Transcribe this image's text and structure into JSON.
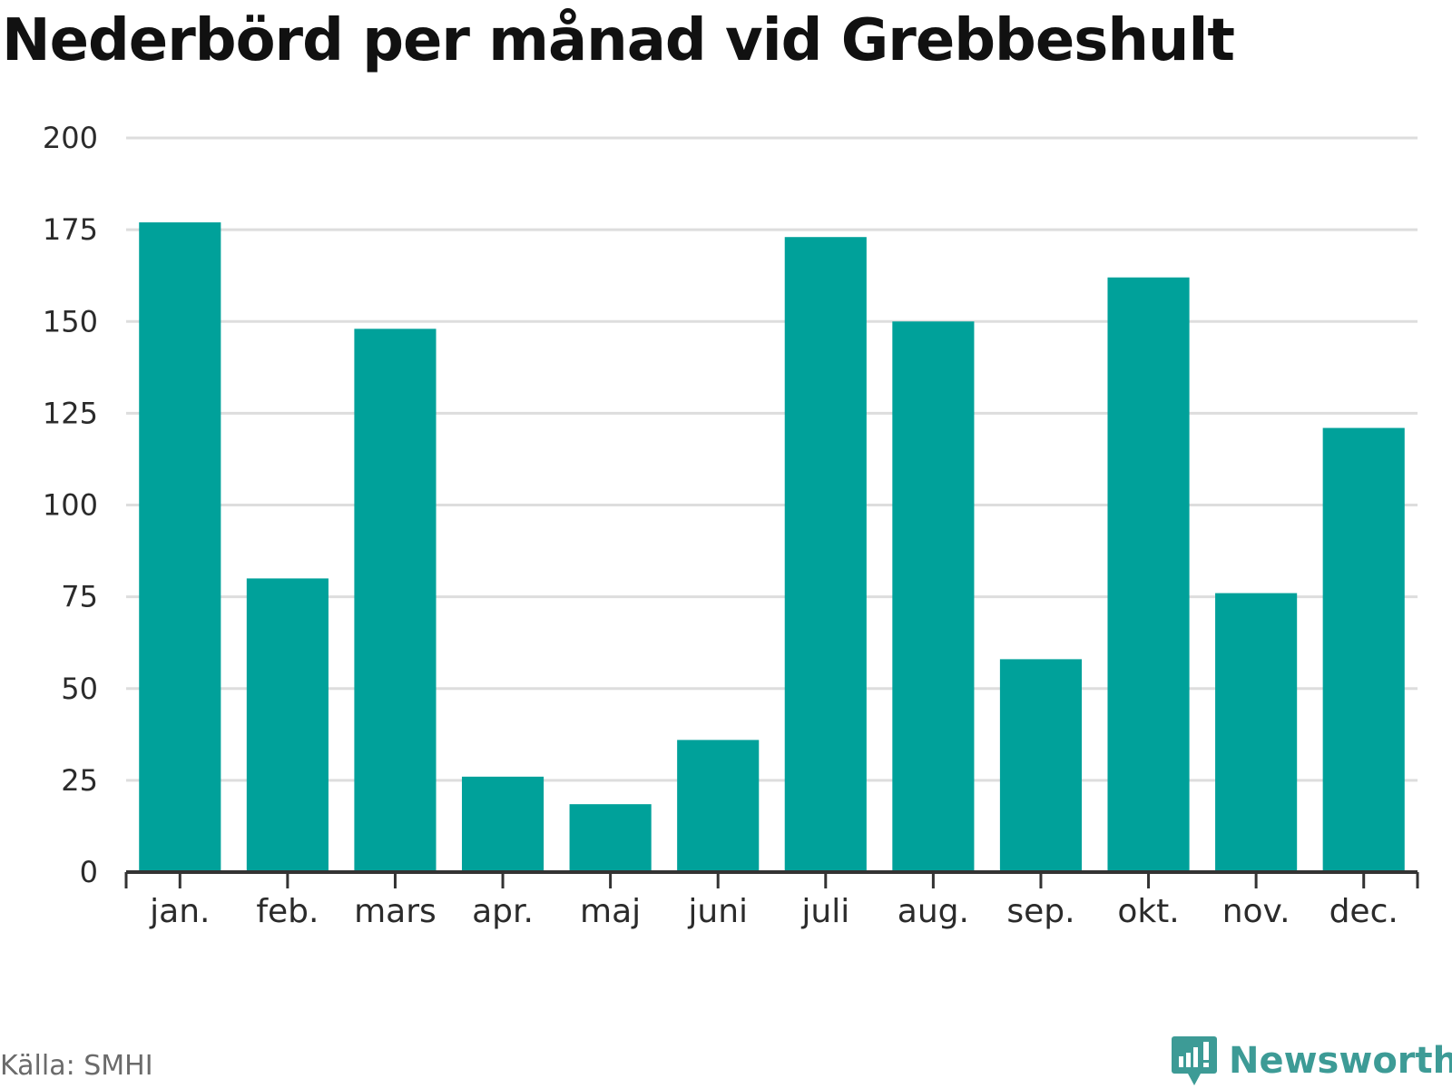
{
  "chart_data": {
    "type": "bar",
    "title": "Nederbörd per månad vid Grebbeshult",
    "categories": [
      "jan.",
      "feb.",
      "mars",
      "apr.",
      "maj",
      "juni",
      "juli",
      "aug.",
      "sep.",
      "okt.",
      "nov.",
      "dec."
    ],
    "values": [
      177,
      80,
      148,
      26,
      18.5,
      36,
      173,
      150,
      58,
      162,
      76,
      121
    ],
    "ylim": [
      0,
      200
    ],
    "yticks": [
      0,
      25,
      50,
      75,
      100,
      125,
      150,
      175,
      200
    ],
    "grid": true,
    "bar_color": "#00a19a"
  },
  "source": "Källa: SMHI",
  "brand": "Newsworthy",
  "colors": {
    "bar": "#00a19a",
    "brand": "#3d9b96",
    "grid": "#dddddd",
    "axis": "#333333"
  },
  "icons": {
    "brand_logo": "newsworthy-logo-icon"
  }
}
